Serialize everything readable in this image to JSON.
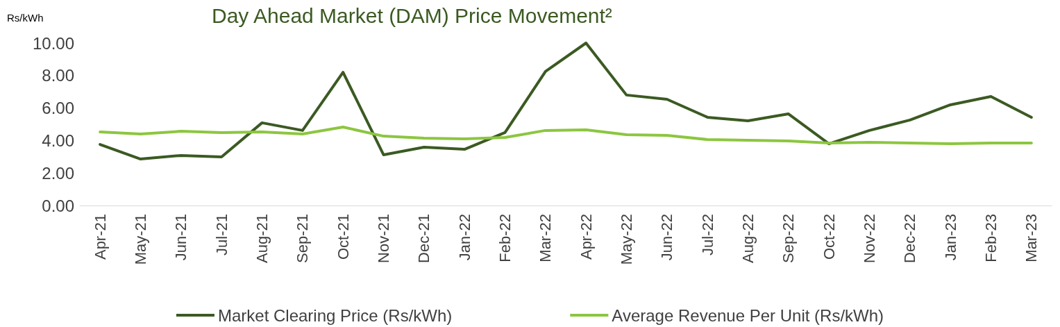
{
  "chart_data": {
    "type": "line",
    "title": "Day Ahead Market (DAM) Price Movement²",
    "ylabel": "Rs/kWh",
    "categories": [
      "Apr-21",
      "May-21",
      "Jun-21",
      "Jul-21",
      "Aug-21",
      "Sep-21",
      "Oct-21",
      "Nov-21",
      "Dec-21",
      "Jan-22",
      "Feb-22",
      "Mar-22",
      "Apr-22",
      "May-22",
      "Jun-22",
      "Jul-22",
      "Aug-22",
      "Sep-22",
      "Oct-22",
      "Nov-22",
      "Dec-22",
      "Jan-23",
      "Feb-23",
      "Mar-23"
    ],
    "series": [
      {
        "name": "Market Clearing Price (Rs/kWh)",
        "color": "#3b5a22",
        "values": [
          3.76,
          2.86,
          3.08,
          2.99,
          5.09,
          4.62,
          8.2,
          3.12,
          3.59,
          3.46,
          4.49,
          8.25,
          10.0,
          6.8,
          6.54,
          5.43,
          5.21,
          5.64,
          3.8,
          4.62,
          5.26,
          6.2,
          6.71,
          5.43
        ]
      },
      {
        "name": "Average Revenue Per Unit (Rs/kWh)",
        "color": "#8cc63f",
        "values": [
          4.53,
          4.4,
          4.57,
          4.49,
          4.53,
          4.4,
          4.83,
          4.27,
          4.15,
          4.1,
          4.19,
          4.62,
          4.66,
          4.36,
          4.32,
          4.06,
          4.02,
          3.97,
          3.85,
          3.89,
          3.85,
          3.8,
          3.85,
          3.85
        ]
      }
    ],
    "ylim": [
      0,
      10
    ],
    "yticks": [
      {
        "value": 0,
        "label": "0.00"
      },
      {
        "value": 2,
        "label": "2.00"
      },
      {
        "value": 4,
        "label": "4.00"
      },
      {
        "value": 6,
        "label": "6.00"
      },
      {
        "value": 8,
        "label": "8.00"
      },
      {
        "value": 10,
        "label": "10.00"
      }
    ],
    "grid": false,
    "legend": "bottom",
    "marker": "none",
    "line_style": "solid"
  }
}
